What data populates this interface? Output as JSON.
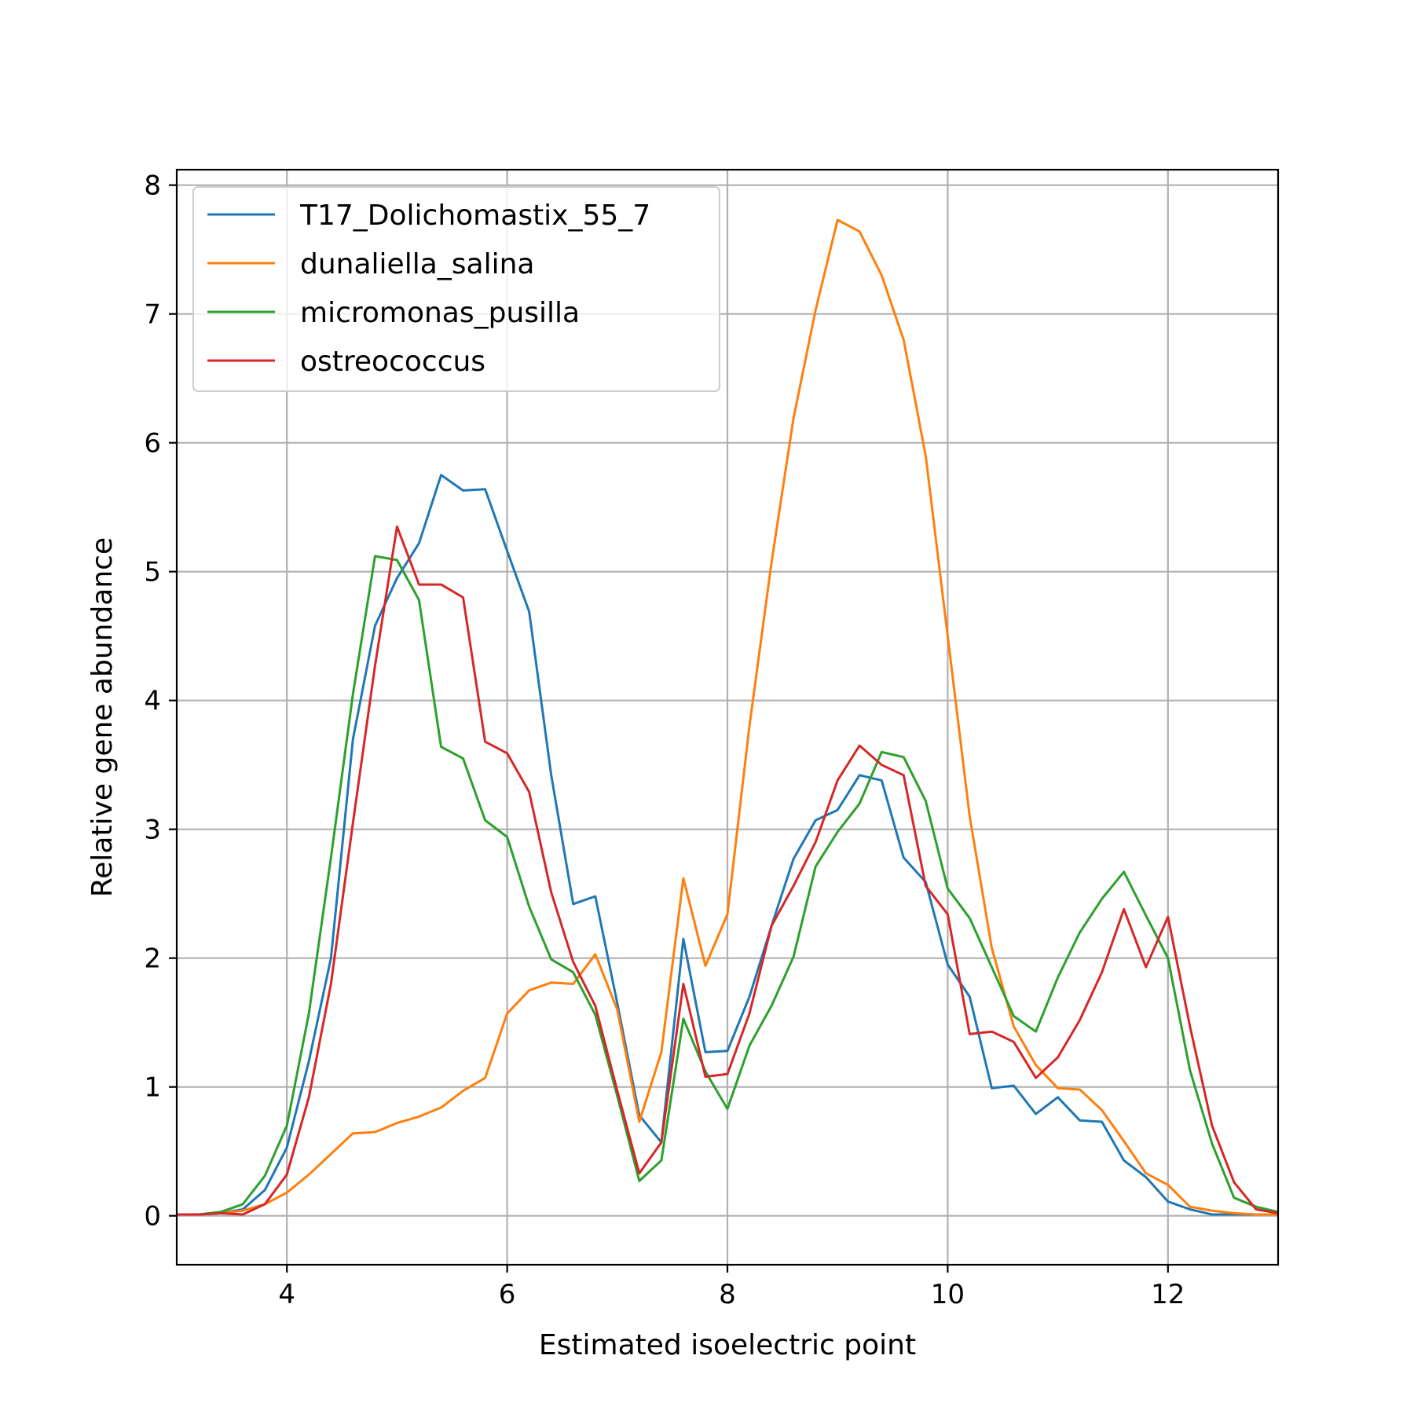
{
  "chart_data": {
    "type": "line",
    "xlabel": "Estimated isoelectric point",
    "ylabel": "Relative gene abundance",
    "xlim": [
      3,
      13
    ],
    "ylim": [
      -0.38,
      8.12
    ],
    "xticks": [
      4,
      6,
      8,
      10,
      12
    ],
    "yticks": [
      0,
      1,
      2,
      3,
      4,
      5,
      6,
      7,
      8
    ],
    "grid": true,
    "legend_position": "top-left",
    "x": [
      3.0,
      3.2,
      3.4,
      3.6,
      3.8,
      4.0,
      4.2,
      4.4,
      4.6,
      4.8,
      5.0,
      5.2,
      5.4,
      5.6,
      5.8,
      6.0,
      6.2,
      6.4,
      6.6,
      6.8,
      7.0,
      7.2,
      7.4,
      7.6,
      7.8,
      8.0,
      8.2,
      8.4,
      8.6,
      8.8,
      9.0,
      9.2,
      9.4,
      9.6,
      9.8,
      10.0,
      10.2,
      10.4,
      10.6,
      10.8,
      11.0,
      11.2,
      11.4,
      11.6,
      11.8,
      12.0,
      12.2,
      12.4,
      12.6,
      12.8,
      13.0
    ],
    "series": [
      {
        "name": "T17_Dolichomastix_55_7",
        "color": "#1f77b4",
        "values": [
          0.01,
          0.01,
          0.02,
          0.05,
          0.2,
          0.53,
          1.2,
          2.0,
          3.7,
          4.58,
          4.95,
          5.22,
          5.75,
          5.63,
          5.64,
          5.16,
          4.69,
          3.42,
          2.42,
          2.48,
          1.65,
          0.78,
          0.57,
          2.15,
          1.27,
          1.28,
          1.7,
          2.25,
          2.77,
          3.07,
          3.15,
          3.42,
          3.38,
          2.78,
          2.59,
          1.95,
          1.7,
          0.99,
          1.01,
          0.79,
          0.92,
          0.74,
          0.73,
          0.43,
          0.3,
          0.11,
          0.05,
          0.01,
          0.01,
          0.01,
          0.01
        ]
      },
      {
        "name": "dunaliella_salina",
        "color": "#ff7f0e",
        "values": [
          0.01,
          0.01,
          0.02,
          0.04,
          0.09,
          0.18,
          0.32,
          0.48,
          0.64,
          0.65,
          0.72,
          0.77,
          0.84,
          0.97,
          1.07,
          1.57,
          1.75,
          1.81,
          1.8,
          2.03,
          1.6,
          0.73,
          1.27,
          2.62,
          1.94,
          2.34,
          3.8,
          5.07,
          6.19,
          7.03,
          7.73,
          7.64,
          7.3,
          6.8,
          5.9,
          4.5,
          3.1,
          2.08,
          1.47,
          1.17,
          0.99,
          0.98,
          0.82,
          0.58,
          0.33,
          0.24,
          0.07,
          0.04,
          0.02,
          0.01,
          0.01
        ]
      },
      {
        "name": "micromonas_pusilla",
        "color": "#2ca02c",
        "values": [
          0.01,
          0.01,
          0.03,
          0.09,
          0.31,
          0.7,
          1.57,
          2.78,
          4.05,
          5.12,
          5.09,
          4.78,
          3.64,
          3.55,
          3.07,
          2.94,
          2.4,
          1.99,
          1.89,
          1.56,
          0.93,
          0.27,
          0.43,
          1.53,
          1.12,
          0.83,
          1.32,
          1.63,
          2.01,
          2.71,
          2.98,
          3.2,
          3.6,
          3.56,
          3.22,
          2.54,
          2.31,
          1.93,
          1.55,
          1.43,
          1.85,
          2.2,
          2.46,
          2.67,
          2.33,
          2.0,
          1.13,
          0.56,
          0.14,
          0.07,
          0.03
        ]
      },
      {
        "name": "ostreococcus",
        "color": "#d62728",
        "values": [
          0.01,
          0.01,
          0.02,
          0.01,
          0.09,
          0.32,
          0.92,
          1.8,
          3.05,
          4.27,
          5.35,
          4.9,
          4.9,
          4.8,
          3.68,
          3.59,
          3.29,
          2.51,
          1.97,
          1.63,
          0.97,
          0.33,
          0.57,
          1.8,
          1.08,
          1.1,
          1.57,
          2.25,
          2.56,
          2.9,
          3.38,
          3.65,
          3.5,
          3.42,
          2.56,
          2.34,
          1.41,
          1.43,
          1.35,
          1.07,
          1.23,
          1.52,
          1.89,
          2.38,
          1.93,
          2.32,
          1.47,
          0.7,
          0.26,
          0.05,
          0.02
        ]
      }
    ]
  }
}
